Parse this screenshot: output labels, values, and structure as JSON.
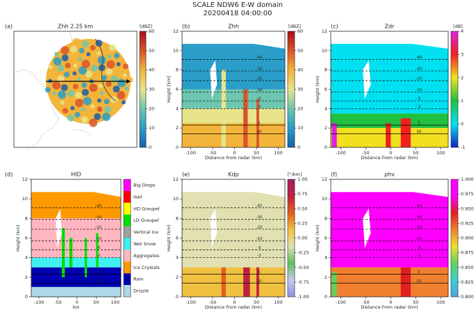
{
  "figure": {
    "title": "SCALE NDW6 E-W domain",
    "subtitle": "20200418 04:00:00"
  },
  "contours": {
    "levels": [
      -40,
      -30,
      -20,
      -10,
      -5,
      -2,
      5,
      10
    ],
    "heights": [
      9.1,
      7.9,
      6.9,
      5.7,
      4.8,
      4.0,
      2.3,
      1.4
    ]
  },
  "chart_data": [
    {
      "type": "map",
      "label": "(a)",
      "title": "Zhh 2.25 km",
      "colorbar": {
        "label": "[dBZ]",
        "lim": [
          0,
          60
        ],
        "ticks": [
          0,
          10,
          20,
          30,
          40,
          50,
          60
        ],
        "colors": [
          "#1a5fa8",
          "#2a9ec9",
          "#6dc6b0",
          "#e8e48a",
          "#f2b43a",
          "#d9542a",
          "#a80f1e"
        ]
      }
    },
    {
      "type": "heatmap",
      "label": "(b)",
      "title": "Zhh",
      "xlabel": "Distance from radar (km)",
      "ylabel": "Height [km]",
      "xlim": [
        -120,
        115
      ],
      "xticks": [
        -100,
        -50,
        0,
        50,
        100
      ],
      "ylim": [
        0,
        12
      ],
      "yticks": [
        0,
        2,
        4,
        6,
        8,
        10,
        12
      ],
      "colorbar": {
        "label": "[dBZ]",
        "lim": [
          0,
          60
        ],
        "ticks": [
          0,
          10,
          20,
          30,
          40,
          50,
          60
        ],
        "colors": [
          "#1a5fa8",
          "#2a9ec9",
          "#6dc6b0",
          "#e8e48a",
          "#f2b43a",
          "#d9542a",
          "#a80f1e"
        ]
      }
    },
    {
      "type": "heatmap",
      "label": "(c)",
      "title": "Zdr",
      "xlabel": "Distance from radar (km)",
      "ylabel": "Height (km)",
      "xlim": [
        -120,
        115
      ],
      "xticks": [
        -100,
        -50,
        0,
        50,
        100
      ],
      "ylim": [
        0,
        12
      ],
      "yticks": [
        0,
        2,
        4,
        6,
        8,
        10,
        12
      ],
      "colorbar": {
        "label": "[dB]",
        "lim": [
          -1,
          4
        ],
        "ticks": [
          -1,
          0,
          1,
          2,
          3,
          4
        ],
        "colors": [
          "#1020c0",
          "#00e0f0",
          "#20c040",
          "#f0e020",
          "#f02020",
          "#e020e0"
        ]
      }
    },
    {
      "type": "categorical",
      "label": "(d)",
      "title": "HID",
      "xlabel": "lon",
      "ylabel": "Height (km)",
      "xlim": [
        -120,
        115
      ],
      "xticks": [
        -100,
        -50,
        0,
        50,
        100
      ],
      "ylim": [
        0,
        12
      ],
      "yticks": [
        0,
        2,
        4,
        6,
        8,
        10,
        12
      ],
      "colorbar": {
        "categories": [
          "Big Drops",
          "Hail",
          "HD Graupel",
          "LD Graupel",
          "Vertical Ice",
          "Wet Snow",
          "Aggregates",
          "Ice Crystals",
          "Rain",
          "Drizzle"
        ],
        "colors": [
          "#ff00ff",
          "#ff0000",
          "#ffff00",
          "#00e000",
          "#a0a0a0",
          "#40f0f0",
          "#ffb6c1",
          "#ff9900",
          "#0000b0",
          "#add8e6"
        ]
      }
    },
    {
      "type": "heatmap",
      "label": "(e)",
      "title": "Kdp",
      "xlabel": "Distance from radar (km)",
      "ylabel": "Height (km)",
      "xlim": [
        -120,
        115
      ],
      "xticks": [
        -100,
        -50,
        0,
        50,
        100
      ],
      "ylim": [
        0,
        12
      ],
      "yticks": [
        0,
        2,
        4,
        6,
        8,
        10,
        12
      ],
      "colorbar": {
        "label": "[°/km]",
        "lim": [
          -1,
          1
        ],
        "ticks": [
          {
            "value": -1,
            "label": "-1.00"
          },
          {
            "value": -0.75,
            "label": "-0.75"
          },
          {
            "value": -0.5,
            "label": "-0.50"
          },
          {
            "value": -0.25,
            "label": "-0.25"
          },
          {
            "value": 0,
            "label": "0.00"
          },
          {
            "value": 0.25,
            "label": "0.25"
          },
          {
            "value": 0.5,
            "label": "0.50"
          },
          {
            "value": 0.75,
            "label": "0.75"
          },
          {
            "value": 1,
            "label": "1.00"
          }
        ],
        "colors": [
          "#9090e8",
          "#c8c8f0",
          "#60c060",
          "#e0e0b0",
          "#f0c040",
          "#e06020",
          "#c02040",
          "#a02060"
        ]
      }
    },
    {
      "type": "heatmap",
      "label": "(f)",
      "title": "ρhv",
      "xlabel": "Distance from radar (km)",
      "ylabel": "Height (km)",
      "xlim": [
        -120,
        115
      ],
      "xticks": [
        -100,
        -50,
        0,
        50,
        100
      ],
      "ylim": [
        0,
        12
      ],
      "yticks": [
        0,
        2,
        4,
        6,
        8,
        10,
        12
      ],
      "colorbar": {
        "lim": [
          0.8,
          1.0
        ],
        "ticks": [
          {
            "value": 0.8,
            "label": "0.800"
          },
          {
            "value": 0.825,
            "label": "0.825"
          },
          {
            "value": 0.85,
            "label": "0.850"
          },
          {
            "value": 0.875,
            "label": "0.875"
          },
          {
            "value": 0.9,
            "label": "0.900"
          },
          {
            "value": 0.925,
            "label": "0.925"
          },
          {
            "value": 0.95,
            "label": "0.950"
          },
          {
            "value": 0.975,
            "label": "0.975"
          },
          {
            "value": 1.0,
            "label": "1.000"
          }
        ],
        "colors": [
          "#50a0e0",
          "#40d0d0",
          "#60d060",
          "#f0e030",
          "#f08030",
          "#e02020",
          "#ff00ff",
          "#ff00ff"
        ]
      }
    }
  ]
}
